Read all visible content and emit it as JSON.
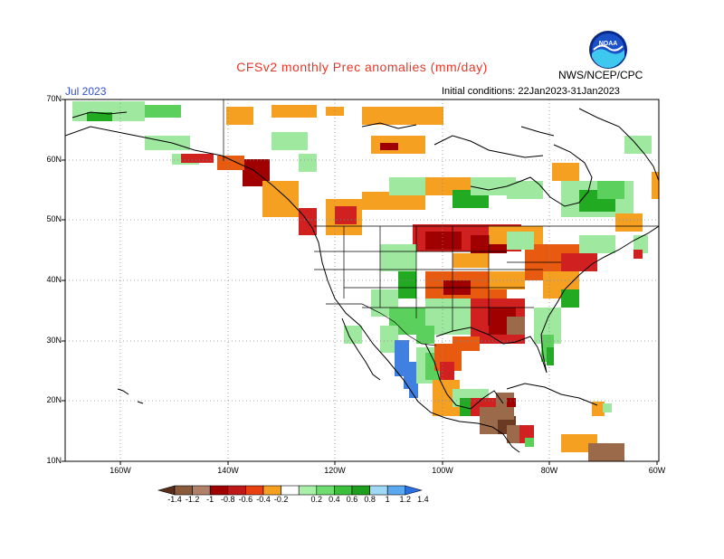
{
  "header": {
    "title": "CFSv2 monthly Prec anomalies (mm/day)",
    "period": "Jul 2023",
    "initial_conditions": "Initial conditions: 22Jan2023-31Jan2023",
    "agency": "NWS/NCEP/CPC",
    "logo_text": "NOAA"
  },
  "map": {
    "lat_labels": [
      "70N",
      "60N",
      "50N",
      "40N",
      "30N",
      "20N",
      "10N"
    ],
    "lon_labels": [
      "160W",
      "140W",
      "120W",
      "100W",
      "80W",
      "60W"
    ],
    "colors": {
      "brown_dark": "#6b3a22",
      "brown": "#9b6a4a",
      "dark_red": "#a00000",
      "red": "#d02020",
      "orange_red": "#e85a10",
      "orange": "#f5a020",
      "light_green": "#9fe89f",
      "green": "#5cd05c",
      "dark_green": "#22aa22",
      "blue": "#4080e0",
      "light_blue": "#8cc8f0"
    }
  },
  "colorbar": {
    "labels": [
      "-1.4",
      "-1.2",
      "-1",
      "-0.8",
      "-0.6",
      "-0.4",
      "-0.2",
      "0.2",
      "0.4",
      "0.6",
      "0.8",
      "1",
      "1.2",
      "1.4"
    ],
    "colors": [
      "#5a2e1a",
      "#8a5a3a",
      "#b08068",
      "#a00000",
      "#c01818",
      "#e84010",
      "#f5a020",
      "#ffffff",
      "#a8f0a8",
      "#6edc6e",
      "#3cc03c",
      "#1ea01e",
      "#a0d8f8",
      "#5aa8f0",
      "#2a70e0"
    ]
  }
}
